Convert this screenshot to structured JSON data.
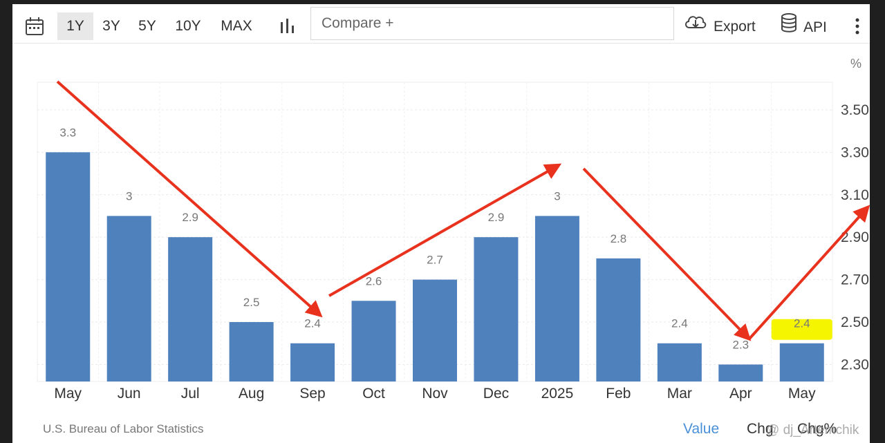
{
  "toolbar": {
    "calendar_icon": "calendar-icon",
    "ranges": [
      "1Y",
      "3Y",
      "5Y",
      "10Y",
      "MAX"
    ],
    "active_range": "1Y",
    "chart_type_icon": "bar-chart-icon",
    "compare_placeholder": "Compare +",
    "export_label": "Export",
    "export_icon": "cloud-download-icon",
    "api_label": "API",
    "api_icon": "database-icon",
    "more_icon": "more-vertical-icon"
  },
  "chart_data": {
    "type": "bar",
    "unit_label": "%",
    "categories": [
      "May",
      "Jun",
      "Jul",
      "Aug",
      "Sep",
      "Oct",
      "Nov",
      "Dec",
      "2025",
      "Feb",
      "Mar",
      "Apr",
      "May"
    ],
    "values": [
      3.3,
      3,
      2.9,
      2.5,
      2.4,
      2.6,
      2.7,
      2.9,
      3,
      2.8,
      2.4,
      2.3,
      2.4
    ],
    "value_labels": [
      "3.3",
      "3",
      "2.9",
      "2.5",
      "2.4",
      "2.6",
      "2.7",
      "2.9",
      "3",
      "2.8",
      "2.4",
      "2.3",
      "2.4"
    ],
    "y_ticks": [
      "3.50",
      "3.30",
      "3.10",
      "2.90",
      "2.70",
      "2.50",
      "2.30"
    ],
    "ylim": [
      2.22,
      3.63
    ],
    "grid": true,
    "bar_color": "#4f81bd",
    "highlighted_label_index": 12,
    "highlight_color": "#f5f500",
    "annotation_color": "#e8321e"
  },
  "footer": {
    "source": "U.S. Bureau of Labor Statistics",
    "value_tab": "Value",
    "chg_tab": "Chg",
    "chgpct_tab": "Chg%",
    "watermark": "@ dj_Artemchik"
  }
}
